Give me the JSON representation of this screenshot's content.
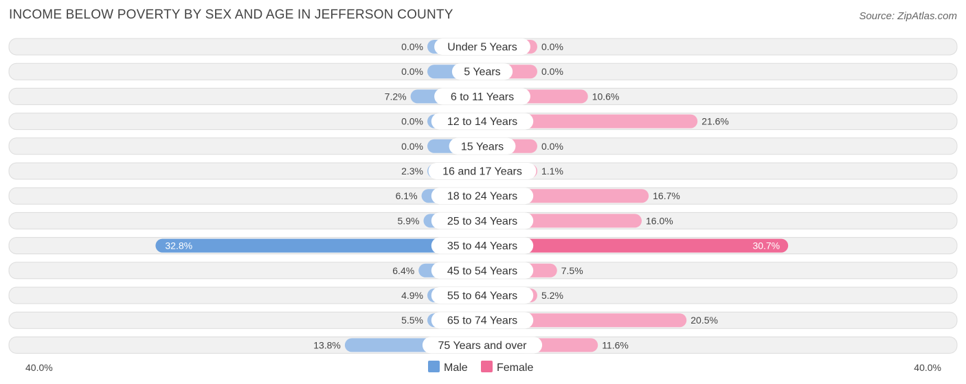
{
  "chart_data": {
    "type": "bar",
    "title": "INCOME BELOW POVERTY BY SEX AND AGE IN JEFFERSON COUNTY",
    "source": "Source: ZipAtlas.com",
    "categories": [
      "Under 5 Years",
      "5 Years",
      "6 to 11 Years",
      "12 to 14 Years",
      "15 Years",
      "16 and 17 Years",
      "18 to 24 Years",
      "25 to 34 Years",
      "35 to 44 Years",
      "45 to 54 Years",
      "55 to 64 Years",
      "65 to 74 Years",
      "75 Years and over"
    ],
    "series": [
      {
        "name": "Male",
        "values": [
          0.0,
          0.0,
          7.2,
          0.0,
          0.0,
          2.3,
          6.1,
          5.9,
          32.8,
          6.4,
          4.9,
          5.5,
          13.8
        ],
        "labels": [
          "0.0%",
          "0.0%",
          "7.2%",
          "0.0%",
          "0.0%",
          "2.3%",
          "6.1%",
          "5.9%",
          "32.8%",
          "6.4%",
          "4.9%",
          "5.5%",
          "13.8%"
        ]
      },
      {
        "name": "Female",
        "values": [
          0.0,
          0.0,
          10.6,
          21.6,
          0.0,
          1.1,
          16.7,
          16.0,
          30.7,
          7.5,
          5.2,
          20.5,
          11.6
        ],
        "labels": [
          "0.0%",
          "0.0%",
          "10.6%",
          "21.6%",
          "0.0%",
          "1.1%",
          "16.7%",
          "16.0%",
          "30.7%",
          "7.5%",
          "5.2%",
          "20.5%",
          "11.6%"
        ]
      }
    ],
    "xlim": [
      -40,
      40
    ],
    "axis_left_label": "40.0%",
    "axis_right_label": "40.0%",
    "legend": [
      "Male",
      "Female"
    ],
    "legend_position": "bottom-center",
    "colors": {
      "male": "#9dbfe8",
      "male_strong": "#6a9fdc",
      "female": "#f7a6c2",
      "female_strong": "#f06a96"
    }
  }
}
